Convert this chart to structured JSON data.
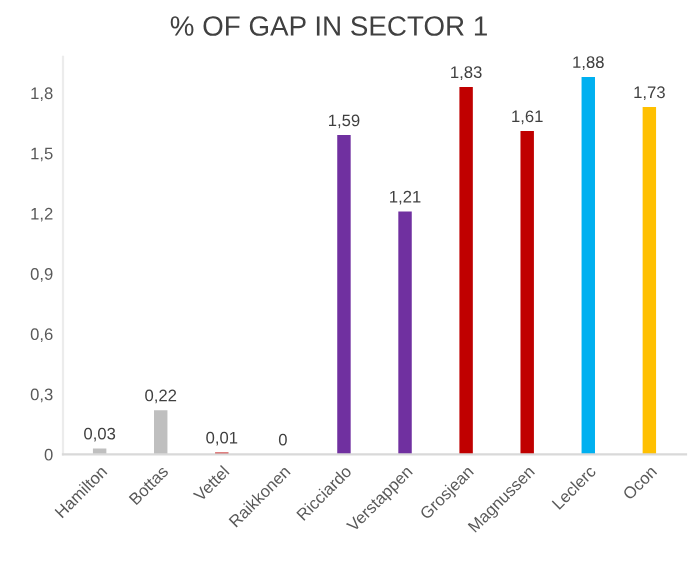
{
  "chart_data": {
    "type": "bar",
    "title": "% OF GAP IN SECTOR 1",
    "categories": [
      "Hamilton",
      "Bottas",
      "Vettel",
      "Raikkonen",
      "Ricciardo",
      "Verstappen",
      "Grosjean",
      "Magnussen",
      "Leclerc",
      "Ocon"
    ],
    "values": [
      0.03,
      0.22,
      0.01,
      0,
      1.59,
      1.21,
      1.83,
      1.61,
      1.88,
      1.73
    ],
    "colors": [
      "#bfbfbf",
      "#bfbfbf",
      "#c00000",
      "#c00000",
      "#7030a0",
      "#7030a0",
      "#c00000",
      "#c00000",
      "#00b0f0",
      "#ffc000"
    ],
    "value_labels": [
      "0,03",
      "0,22",
      "0,01",
      "0",
      "1,59",
      "1,21",
      "1,83",
      "1,61",
      "1,88",
      "1,73"
    ],
    "ylim": [
      0,
      1.98
    ],
    "yticks": [
      0,
      {
        "value": 0.3,
        "label": "0,3"
      },
      {
        "value": 0.6,
        "label": "0,6"
      },
      {
        "value": 0.9,
        "label": "0,9"
      },
      {
        "value": 1.2,
        "label": "1,2"
      },
      {
        "value": 1.5,
        "label": "1,5"
      },
      {
        "value": 1.8,
        "label": "1,8"
      }
    ],
    "grid": false
  }
}
